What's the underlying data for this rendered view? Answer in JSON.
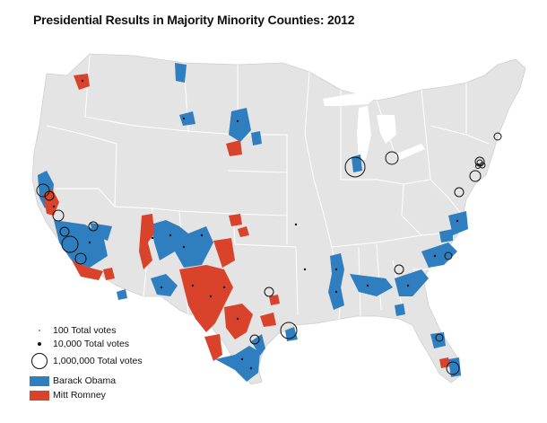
{
  "title": "Presidential Results in Majority Minority Counties: 2012",
  "colors": {
    "obama": "#2f7ec0",
    "romney": "#d9432b",
    "land": "#e4e4e4",
    "border": "#ffffff"
  },
  "legend": {
    "size_100": "100 Total votes",
    "size_10000": "10,000 Total votes",
    "size_1000000": "1,000,000 Total votes",
    "obama": "Barack Obama",
    "romney": "Mitt Romney"
  }
}
